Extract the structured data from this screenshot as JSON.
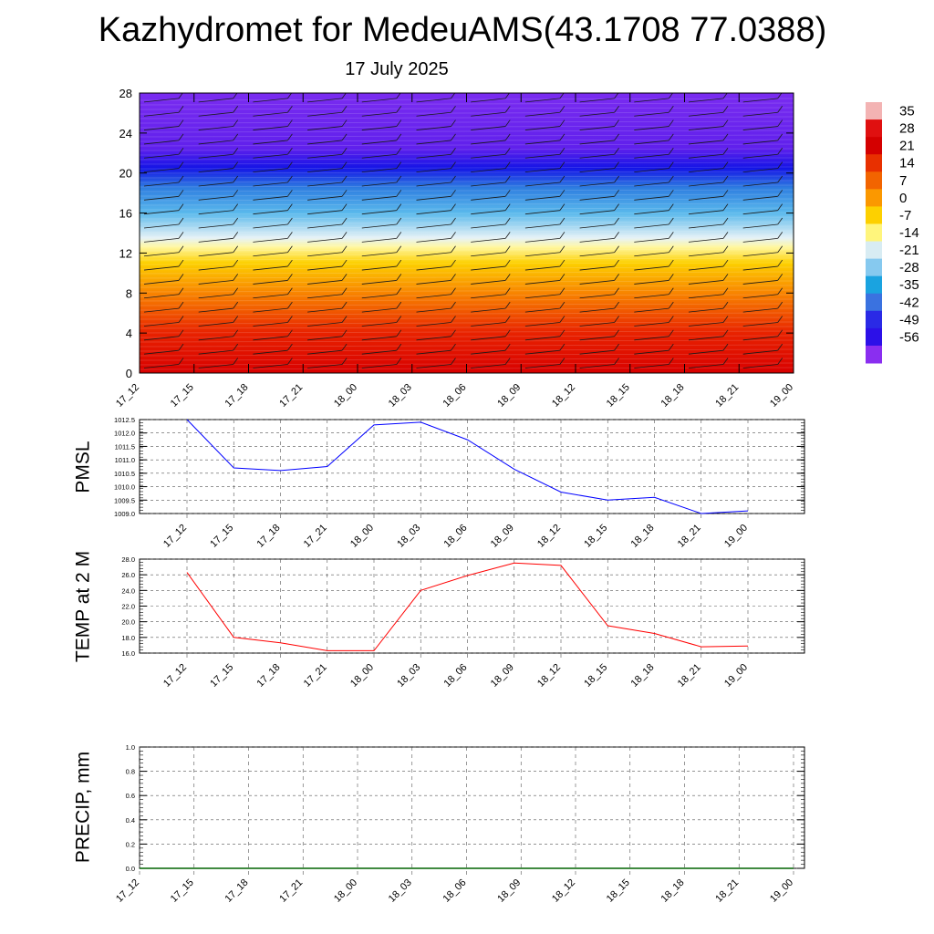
{
  "title": "Kazhydromet for MedeuAMS(43.1708 77.0388)",
  "subtitle": "17 July 2025",
  "chart_data": [
    {
      "type": "heatmap",
      "variable": "temperature by height",
      "x_ticks": [
        "17_12",
        "17_15",
        "17_18",
        "17_21",
        "18_00",
        "18_03",
        "18_06",
        "18_09",
        "18_12",
        "18_15",
        "18_18",
        "18_21",
        "19_00"
      ],
      "ylim": [
        0,
        28
      ],
      "y_ticks": [
        "0",
        "4",
        "8",
        "12",
        "16",
        "20",
        "24",
        "28"
      ],
      "colorbar": {
        "labels": [
          "35",
          "28",
          "21",
          "14",
          "7",
          "0",
          "-7",
          "-14",
          "-21",
          "-28",
          "-35",
          "-42",
          "-49",
          "-56"
        ],
        "colors": [
          "#f3b3b3",
          "#e01010",
          "#d40000",
          "#e83000",
          "#f26400",
          "#fb9800",
          "#fdd000",
          "#fff57c",
          "#d8ecf3",
          "#86c9ef",
          "#1aa3e0",
          "#3a72e0",
          "#2a2ae6",
          "#2c10e8",
          "#8a2ef0"
        ]
      },
      "description_bands": [
        {
          "height": 0,
          "color": "#d80000"
        },
        {
          "height": 4,
          "color": "#e82200"
        },
        {
          "height": 8,
          "color": "#f88400"
        },
        {
          "height": 11,
          "color": "#fdd000"
        },
        {
          "height": 12.6,
          "color": "#fff7a0"
        },
        {
          "height": 13.5,
          "color": "#e6f2f6"
        },
        {
          "height": 16,
          "color": "#5ab9ec"
        },
        {
          "height": 18.5,
          "color": "#2e7ee0"
        },
        {
          "height": 20.5,
          "color": "#1414e6"
        },
        {
          "height": 22.5,
          "color": "#6020ec"
        },
        {
          "height": 28,
          "color": "#7a2cf0"
        }
      ]
    },
    {
      "type": "line",
      "ylabel": "PMSL",
      "x": [
        "17_12",
        "17_15",
        "17_18",
        "17_21",
        "18_00",
        "18_03",
        "18_06",
        "18_09",
        "18_12",
        "18_15",
        "18_18",
        "18_21",
        "19_00"
      ],
      "values": [
        1012.5,
        1010.7,
        1010.6,
        1010.75,
        1012.3,
        1012.4,
        1011.75,
        1010.65,
        1009.8,
        1009.5,
        1009.6,
        1009.0,
        1009.1
      ],
      "ylim": [
        1009.0,
        1012.5
      ],
      "y_ticks": [
        "1009.0",
        "1009.5",
        "1010.0",
        "1010.5",
        "1011.0",
        "1011.5",
        "1012.0",
        "1012.5"
      ],
      "color": "#0000ff",
      "grid": true
    },
    {
      "type": "line",
      "ylabel": "TEMP at 2 M",
      "x": [
        "17_12",
        "17_15",
        "17_18",
        "17_21",
        "18_00",
        "18_03",
        "18_06",
        "18_09",
        "18_12",
        "18_15",
        "18_18",
        "18_21",
        "19_00"
      ],
      "values": [
        26.3,
        18.0,
        17.3,
        16.3,
        16.3,
        24.0,
        25.9,
        27.5,
        27.2,
        19.5,
        18.5,
        16.8,
        16.9
      ],
      "ylim": [
        16.0,
        28.0
      ],
      "y_ticks": [
        "16.0",
        "18.0",
        "20.0",
        "22.0",
        "24.0",
        "26.0",
        "28.0"
      ],
      "color": "#ff0000",
      "grid": true
    },
    {
      "type": "line",
      "ylabel": "PRECIP, mm",
      "x_ticks": [
        "17_12",
        "17_15",
        "17_18",
        "17_21",
        "18_00",
        "18_03",
        "18_06",
        "18_09",
        "18_12",
        "18_15",
        "18_18",
        "18_21",
        "19_00"
      ],
      "values": [
        0,
        0,
        0,
        0,
        0,
        0,
        0,
        0,
        0,
        0,
        0,
        0,
        0
      ],
      "ylim": [
        0.0,
        1.0
      ],
      "y_ticks": [
        "0.0",
        "0.2",
        "0.4",
        "0.6",
        "0.8",
        "1.0"
      ],
      "color": "#006400",
      "grid": true
    }
  ]
}
